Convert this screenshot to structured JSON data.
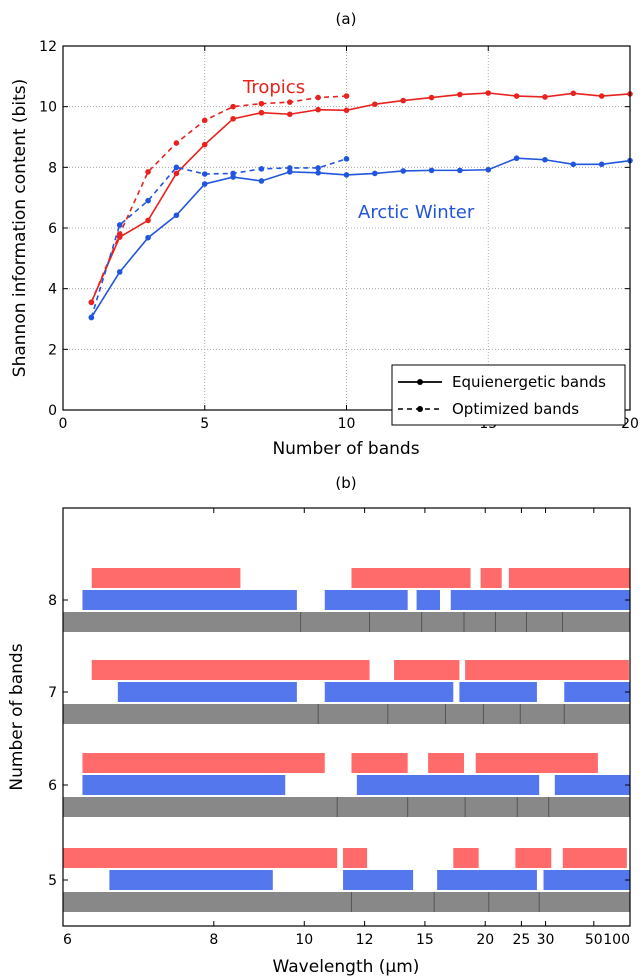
{
  "chart_data": [
    {
      "type": "line",
      "panel_title": "(a)",
      "xlabel": "Number of bands",
      "ylabel": "Shannon information content (bits)",
      "xlim": [
        0,
        20
      ],
      "ylim": [
        0,
        12
      ],
      "xticks": [
        "0",
        "5",
        "10",
        "15",
        "20"
      ],
      "yticks": [
        "0",
        "2",
        "4",
        "6",
        "8",
        "10",
        "12"
      ],
      "grid": true,
      "legend_position": "bottom-right",
      "legend": [
        {
          "label": "Equienergetic bands",
          "style": "solid"
        },
        {
          "label": "Optimized bands",
          "style": "dashed"
        }
      ],
      "annotations": [
        {
          "text": "Tropics",
          "color": "#e8221f"
        },
        {
          "text": "Arctic Winter",
          "color": "#2255dd"
        }
      ],
      "series": [
        {
          "group": "Tropics",
          "style": "solid",
          "color": "#e8221f",
          "x": [
            1,
            2,
            3,
            4,
            5,
            6,
            7,
            8,
            9,
            10,
            11,
            12,
            13,
            14,
            15,
            16,
            17,
            18,
            19,
            20
          ],
          "y": [
            3.55,
            5.7,
            6.25,
            7.8,
            8.75,
            9.6,
            9.8,
            9.75,
            9.9,
            9.88,
            10.08,
            10.2,
            10.3,
            10.4,
            10.45,
            10.35,
            10.32,
            10.44,
            10.35,
            10.42
          ]
        },
        {
          "group": "Tropics",
          "style": "dashed",
          "color": "#e8221f",
          "x": [
            1,
            2,
            3,
            4,
            5,
            6,
            7,
            8,
            9,
            10
          ],
          "y": [
            3.55,
            5.8,
            7.85,
            8.8,
            9.55,
            10.0,
            10.1,
            10.15,
            10.3,
            10.35
          ]
        },
        {
          "group": "Arctic Winter",
          "style": "solid",
          "color": "#2255dd",
          "x": [
            1,
            2,
            3,
            4,
            5,
            6,
            7,
            8,
            9,
            10,
            11,
            12,
            13,
            14,
            15,
            16,
            17,
            18,
            19,
            20
          ],
          "y": [
            3.05,
            4.55,
            5.68,
            6.42,
            7.45,
            7.68,
            7.55,
            7.85,
            7.82,
            7.75,
            7.8,
            7.88,
            7.9,
            7.9,
            7.92,
            8.3,
            8.25,
            8.1,
            8.1,
            8.22
          ]
        },
        {
          "group": "Arctic Winter",
          "style": "dashed",
          "color": "#2255dd",
          "x": [
            1,
            2,
            3,
            4,
            5,
            6,
            7,
            8,
            9,
            10
          ],
          "y": [
            3.05,
            6.1,
            6.9,
            8.0,
            7.78,
            7.8,
            7.95,
            7.98,
            7.98,
            8.28
          ]
        }
      ]
    },
    {
      "type": "band-intervals",
      "panel_title": "(b)",
      "xlabel": "Wavelength (μm)",
      "ylabel": "Number of bands",
      "x_scale": "reciprocal",
      "xlim": [
        6,
        100
      ],
      "xticks": [
        6,
        8,
        10,
        12,
        15,
        20,
        25,
        30,
        50,
        100
      ],
      "yticks": [
        5,
        6,
        7,
        8
      ],
      "colors": {
        "tropics": "#ff6b6b",
        "arctic": "#5577ee",
        "equienergetic": "#888888"
      },
      "groups": [
        {
          "n": 8,
          "tropics": [
            [
              6.3,
              8.5
            ],
            [
              11.5,
              18.5
            ],
            [
              19.5,
              22.0
            ],
            [
              23.0,
              100.0
            ]
          ],
          "arctic": [
            [
              6.2,
              9.8
            ],
            [
              10.6,
              14.0
            ],
            [
              14.5,
              16.0
            ],
            [
              16.8,
              100.0
            ]
          ],
          "equienergetic": [
            [
              6.0,
              100.0
            ]
          ],
          "equi_dividers": [
            9.9,
            12.2,
            14.8,
            17.9,
            21.2,
            25.9,
            34.9
          ]
        },
        {
          "n": 7,
          "tropics": [
            [
              6.3,
              12.2
            ],
            [
              13.3,
              17.5
            ],
            [
              18.0,
              97.0
            ]
          ],
          "arctic": [
            [
              6.6,
              9.8
            ],
            [
              10.6,
              17.0
            ],
            [
              17.5,
              28.0
            ],
            [
              35.5,
              100.0
            ]
          ],
          "equienergetic": [
            [
              6.0,
              100.0
            ]
          ],
          "equi_dividers": [
            10.4,
            13.0,
            16.4,
            19.8,
            24.8,
            35.5
          ]
        },
        {
          "n": 6,
          "tropics": [
            [
              6.2,
              10.6
            ],
            [
              11.5,
              14.0
            ],
            [
              15.2,
              17.9
            ],
            [
              19.0,
              53.0
            ]
          ],
          "arctic": [
            [
              6.2,
              9.5
            ],
            [
              11.7,
              28.5
            ],
            [
              32.5,
              100.0
            ]
          ],
          "equienergetic": [
            [
              6.0,
              100.0
            ]
          ],
          "equi_dividers": [
            11.0,
            14.0,
            18.0,
            24.3,
            30.8
          ]
        },
        {
          "n": 5,
          "tropics": [
            [
              6.0,
              11.0
            ],
            [
              11.2,
              12.1
            ],
            [
              17.0,
              19.3
            ],
            [
              24.0,
              31.5
            ],
            [
              35.0,
              92.0
            ]
          ],
          "arctic": [
            [
              6.5,
              9.2
            ],
            [
              11.2,
              14.3
            ],
            [
              15.8,
              28.0
            ],
            [
              29.5,
              100.0
            ]
          ],
          "equienergetic": [
            [
              6.0,
              100.0
            ]
          ],
          "equi_dividers": [
            11.5,
            15.6,
            20.4,
            28.5
          ]
        }
      ]
    }
  ]
}
